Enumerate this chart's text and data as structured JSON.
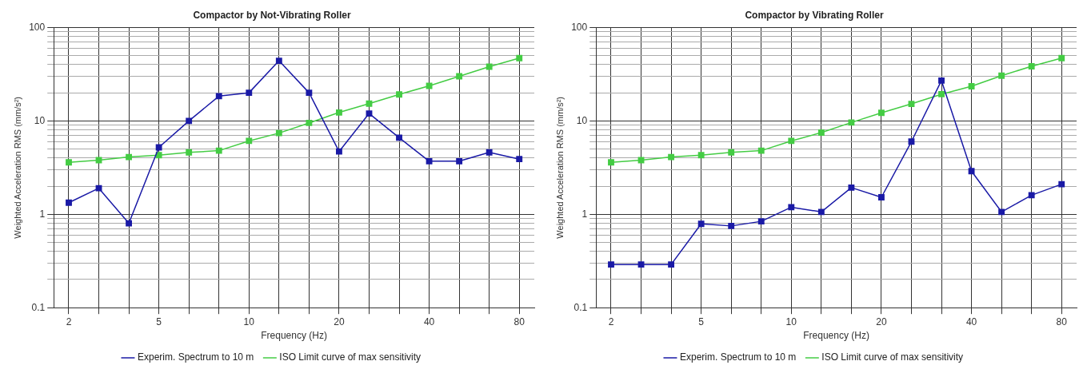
{
  "chart_data": [
    {
      "type": "line",
      "title": "Compactor by Not-Vibrating Roller",
      "xlabel": "Frequency (Hz)",
      "ylabel": "Weighted Acceleration RMS (mm/s²)",
      "categories": [
        "2",
        null,
        null,
        "5",
        null,
        null,
        "10",
        null,
        null,
        "20",
        null,
        null,
        "40",
        null,
        null,
        "80"
      ],
      "series": [
        {
          "name": "Experim. Spectrum to 10 m",
          "color": "#1a1aa6",
          "values": [
            1.33,
            1.9,
            0.8,
            5.2,
            10,
            18.4,
            20,
            44,
            20,
            4.7,
            12,
            6.6,
            3.7,
            3.7,
            4.6,
            3.9
          ]
        },
        {
          "name": "ISO Limit curve of max sensitivity",
          "color": "#44cc44",
          "values": [
            3.6,
            3.8,
            4.1,
            4.3,
            4.6,
            4.8,
            6.1,
            7.4,
            9.5,
            12.3,
            15.3,
            19.2,
            23.7,
            30,
            38,
            47
          ]
        }
      ],
      "log": "y",
      "ylim": [
        0.1,
        100
      ],
      "yticks": [
        0.1,
        {
          "value": 0.2,
          "label": null
        },
        {
          "value": 0.3,
          "label": null
        },
        {
          "value": 0.4,
          "label": null
        },
        {
          "value": 0.5,
          "label": null
        },
        {
          "value": 0.6,
          "label": null
        },
        {
          "value": 0.7,
          "label": null
        },
        {
          "value": 0.8,
          "label": null
        },
        {
          "value": 0.9,
          "label": null
        },
        1,
        {
          "value": 2,
          "label": null
        },
        {
          "value": 3,
          "label": null
        },
        {
          "value": 4,
          "label": null
        },
        {
          "value": 5,
          "label": null
        },
        {
          "value": 6,
          "label": null
        },
        {
          "value": 7,
          "label": null
        },
        {
          "value": 8,
          "label": null
        },
        {
          "value": 9,
          "label": null
        },
        10,
        {
          "value": 20,
          "label": null
        },
        {
          "value": 30,
          "label": null
        },
        {
          "value": 40,
          "label": null
        },
        {
          "value": 50,
          "label": null
        },
        {
          "value": 60,
          "label": null
        },
        {
          "value": 70,
          "label": null
        },
        {
          "value": 80,
          "label": null
        },
        {
          "value": 90,
          "label": null
        },
        100
      ],
      "grid": true,
      "legend": "bottom",
      "marker": "square"
    },
    {
      "type": "line",
      "title": "Compactor by Vibrating Roller",
      "xlabel": "Frequency (Hz)",
      "ylabel": "Weighted Acceleration RMS (mm/s²)",
      "categories": [
        "2",
        null,
        null,
        "5",
        null,
        null,
        "10",
        null,
        null,
        "20",
        null,
        null,
        "40",
        null,
        null,
        "80"
      ],
      "series": [
        {
          "name": "Experim. Spectrum to 10 m",
          "color": "#1a1aa6",
          "values": [
            0.29,
            0.29,
            0.29,
            0.79,
            0.75,
            0.84,
            1.19,
            1.06,
            1.93,
            1.52,
            6,
            27,
            2.9,
            1.06,
            1.6,
            2.1
          ]
        },
        {
          "name": "ISO Limit curve of max sensitivity",
          "color": "#44cc44",
          "values": [
            3.6,
            3.8,
            4.1,
            4.3,
            4.6,
            4.8,
            6.1,
            7.5,
            9.6,
            12.2,
            15.2,
            19.3,
            23.5,
            30.5,
            38.4,
            47
          ]
        }
      ],
      "log": "y",
      "ylim": [
        0.1,
        100
      ],
      "yticks": [
        0.1,
        {
          "value": 0.2,
          "label": null
        },
        {
          "value": 0.3,
          "label": null
        },
        {
          "value": 0.4,
          "label": null
        },
        {
          "value": 0.5,
          "label": null
        },
        {
          "value": 0.6,
          "label": null
        },
        {
          "value": 0.7,
          "label": null
        },
        {
          "value": 0.8,
          "label": null
        },
        {
          "value": 0.9,
          "label": null
        },
        1,
        {
          "value": 2,
          "label": null
        },
        {
          "value": 3,
          "label": null
        },
        {
          "value": 4,
          "label": null
        },
        {
          "value": 5,
          "label": null
        },
        {
          "value": 6,
          "label": null
        },
        {
          "value": 7,
          "label": null
        },
        {
          "value": 8,
          "label": null
        },
        {
          "value": 9,
          "label": null
        },
        10,
        {
          "value": 20,
          "label": null
        },
        {
          "value": 30,
          "label": null
        },
        {
          "value": 40,
          "label": null
        },
        {
          "value": 50,
          "label": null
        },
        {
          "value": 60,
          "label": null
        },
        {
          "value": 70,
          "label": null
        },
        {
          "value": 80,
          "label": null
        },
        {
          "value": 90,
          "label": null
        },
        100
      ],
      "grid": true,
      "legend": "bottom",
      "marker": "square"
    }
  ]
}
